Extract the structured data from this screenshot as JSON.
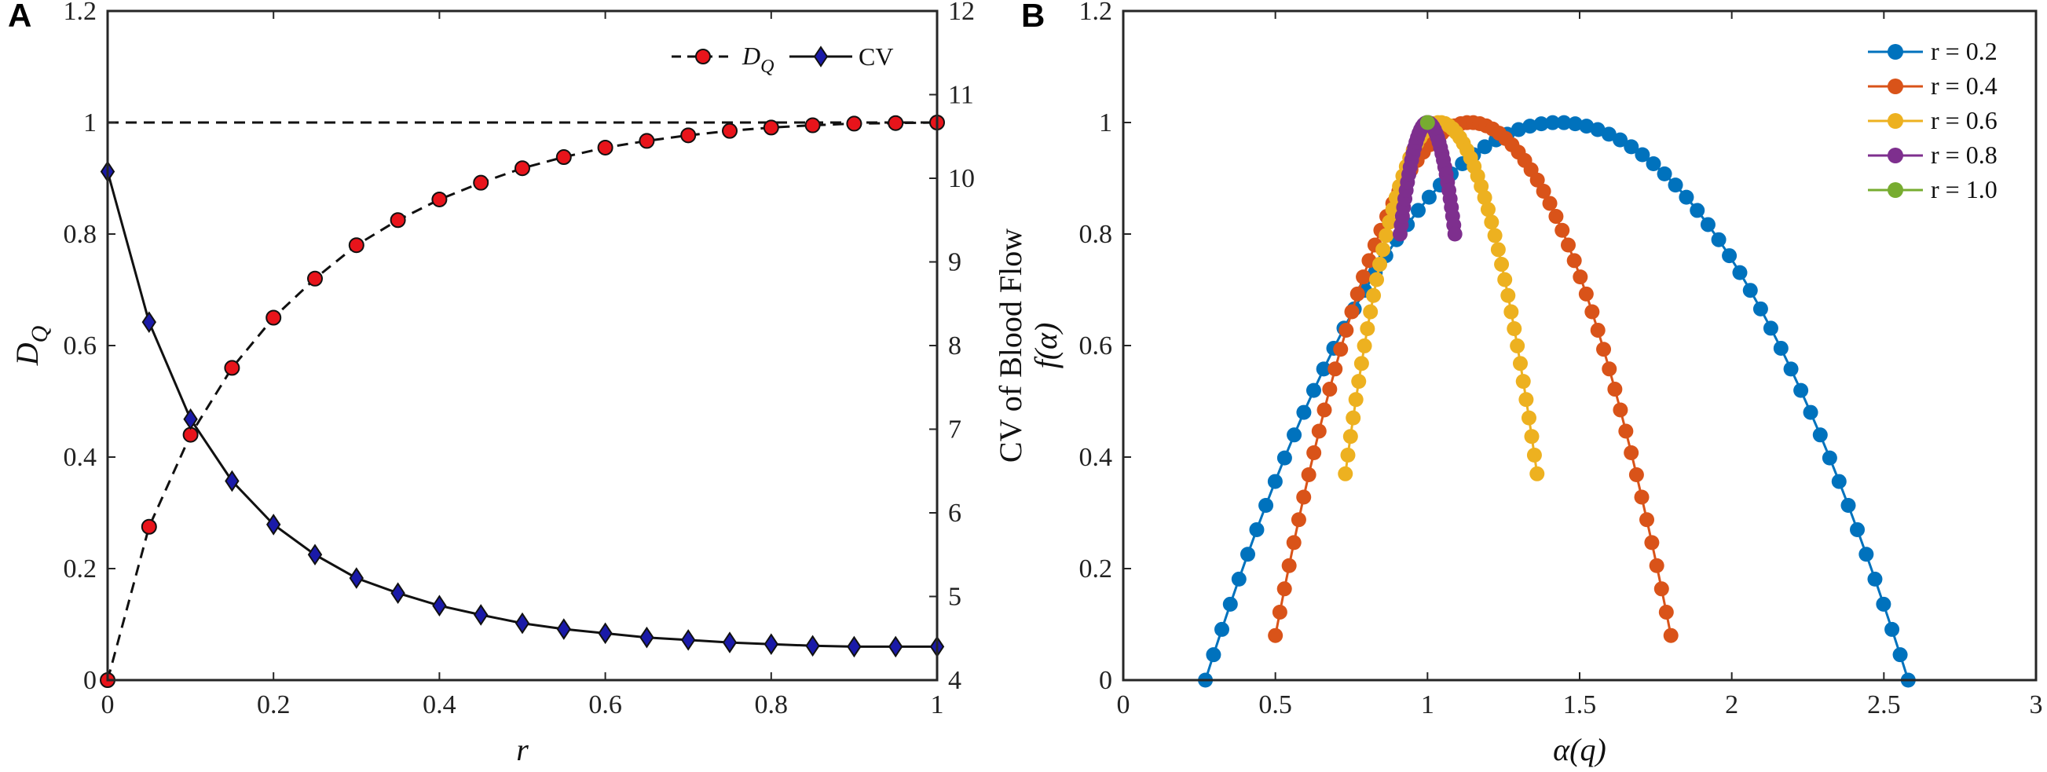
{
  "chart_data": [
    {
      "panel": "A",
      "type": "line",
      "xlabel": "r",
      "ylabel": "D",
      "ylabel_sub": "Q",
      "y2label": "CV of Blood Flow",
      "xlim": [
        0,
        1
      ],
      "ylim": [
        0,
        1.2
      ],
      "y2lim": [
        4,
        12
      ],
      "x_ticks": [
        "0",
        "0.2",
        "0.4",
        "0.6",
        "0.8",
        "1"
      ],
      "y_ticks": [
        "0",
        "0.2",
        "0.4",
        "0.6",
        "0.8",
        "1",
        "1.2"
      ],
      "y2_ticks": [
        "4",
        "5",
        "6",
        "7",
        "8",
        "9",
        "10",
        "11",
        "12"
      ],
      "reference_line": {
        "y": 1,
        "style": "dashed"
      },
      "legend": {
        "position": "top-right",
        "entries": [
          "D",
          "CV"
        ],
        "entry0_sub": "Q"
      },
      "series": [
        {
          "name": "D_Q",
          "axis": "left",
          "marker": "circle",
          "color": "#e8141b",
          "line": "dashed",
          "x": [
            0,
            0.05,
            0.1,
            0.15,
            0.2,
            0.25,
            0.3,
            0.35,
            0.4,
            0.45,
            0.5,
            0.55,
            0.6,
            0.65,
            0.7,
            0.75,
            0.8,
            0.85,
            0.9,
            0.95,
            1.0
          ],
          "values": [
            0.0,
            0.275,
            0.44,
            0.56,
            0.65,
            0.72,
            0.78,
            0.825,
            0.862,
            0.892,
            0.918,
            0.938,
            0.955,
            0.967,
            0.977,
            0.985,
            0.991,
            0.995,
            0.998,
            0.999,
            1.0
          ]
        },
        {
          "name": "CV",
          "axis": "right",
          "marker": "diamond",
          "color": "#1a1aa8",
          "line": "solid",
          "x": [
            0,
            0.05,
            0.1,
            0.15,
            0.2,
            0.25,
            0.3,
            0.35,
            0.4,
            0.45,
            0.5,
            0.55,
            0.6,
            0.65,
            0.7,
            0.75,
            0.8,
            0.85,
            0.9,
            0.95,
            1.0
          ],
          "values": [
            10.08,
            8.28,
            7.12,
            6.38,
            5.86,
            5.5,
            5.22,
            5.04,
            4.89,
            4.78,
            4.68,
            4.61,
            4.56,
            4.51,
            4.48,
            4.45,
            4.43,
            4.41,
            4.4,
            4.4,
            4.4
          ]
        }
      ]
    },
    {
      "panel": "B",
      "type": "line",
      "xlabel": "α(q)",
      "ylabel": "f(α)",
      "xlim": [
        0,
        3
      ],
      "ylim": [
        0,
        1.2
      ],
      "x_ticks": [
        "0",
        "0.5",
        "1",
        "1.5",
        "2",
        "2.5",
        "3"
      ],
      "y_ticks": [
        "0",
        "0.2",
        "0.4",
        "0.6",
        "0.8",
        "1",
        "1.2"
      ],
      "legend": {
        "position": "top-right"
      },
      "series": [
        {
          "name": "r = 0.2",
          "color": "#0072bd",
          "alpha_min": 0.27,
          "alpha_peak": 1.43,
          "alpha_max": 2.58,
          "f_left_end": 0.0,
          "f_right_end": 0.0,
          "n_points": 70
        },
        {
          "name": "r = 0.4",
          "color": "#d95319",
          "alpha_min": 0.5,
          "alpha_peak": 1.14,
          "alpha_max": 1.8,
          "f_left_end": 0.08,
          "f_right_end": 0.08,
          "n_points": 70
        },
        {
          "name": "r = 0.6",
          "color": "#edb120",
          "alpha_min": 0.73,
          "alpha_peak": 1.04,
          "alpha_max": 1.36,
          "f_left_end": 0.37,
          "f_right_end": 0.37,
          "n_points": 60
        },
        {
          "name": "r = 0.8",
          "color": "#7e2f8e",
          "alpha_min": 0.91,
          "alpha_peak": 1.0,
          "alpha_max": 1.09,
          "f_left_end": 0.8,
          "f_right_end": 0.8,
          "n_points": 40
        },
        {
          "name": "r = 1.0",
          "color": "#77ac30",
          "alpha_min": 1.0,
          "alpha_peak": 1.0,
          "alpha_max": 1.0,
          "f_left_end": 1.0,
          "f_right_end": 1.0,
          "n_points": 1
        }
      ]
    }
  ]
}
